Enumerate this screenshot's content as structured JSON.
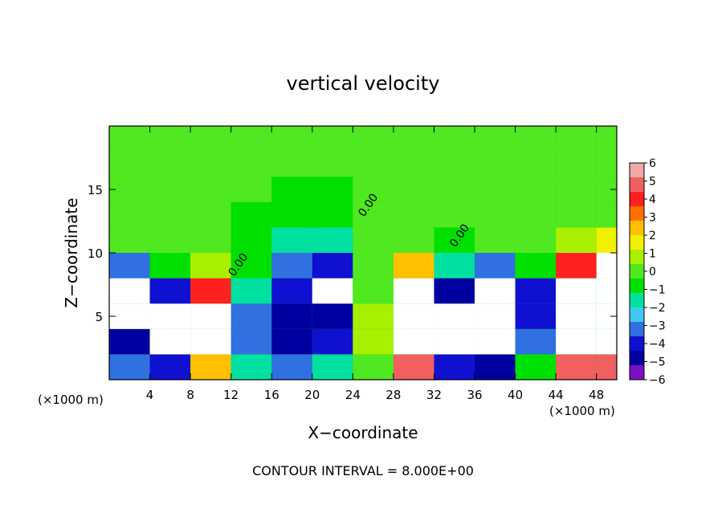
{
  "chart_data": {
    "type": "heatmap",
    "title": "vertical velocity",
    "xlabel": "X−coordinate",
    "ylabel": "Z−coordinate",
    "x_unit_left": "(×1000 m)",
    "x_unit_right": "(×1000 m)",
    "xlim": [
      0,
      50
    ],
    "ylim": [
      0,
      20
    ],
    "x_ticks": [
      4,
      8,
      12,
      16,
      20,
      24,
      28,
      32,
      36,
      40,
      44,
      48
    ],
    "y_ticks": [
      5,
      10,
      15
    ],
    "contour_labels": [
      {
        "text": "0.00",
        "x": 25.8,
        "y": 13.6
      },
      {
        "text": "0.00",
        "x": 34.8,
        "y": 11.2
      },
      {
        "text": "0.00",
        "x": 13.0,
        "y": 8.9
      }
    ],
    "footer": "CONTOUR INTERVAL = 8.000E+00",
    "colorbar": {
      "ticks": [
        "6",
        "5",
        "4",
        "3",
        "2",
        "1",
        "0",
        "−1",
        "−2",
        "−3",
        "−4",
        "−5",
        "−6"
      ],
      "colors": [
        "#f0a8a8",
        "#f06060",
        "#ff2020",
        "#ff7000",
        "#ffc000",
        "#f0f000",
        "#a8f000",
        "#50e820",
        "#00e000",
        "#00e0a0",
        "#40c8f0",
        "#3070e0",
        "#1010d0",
        "#0000a0",
        "#7a10c0"
      ]
    },
    "cells": [
      {
        "x": 0,
        "y": 0,
        "z": -3
      },
      {
        "x": 4,
        "y": 0,
        "z": -4
      },
      {
        "x": 8,
        "y": 0,
        "z": 3
      },
      {
        "x": 12,
        "y": 0,
        "z": -2
      },
      {
        "x": 16,
        "y": 0,
        "z": -3
      },
      {
        "x": 20,
        "y": 0,
        "z": -2
      },
      {
        "x": 24,
        "y": 0,
        "z": 0
      },
      {
        "x": 28,
        "y": 0,
        "z": 5
      },
      {
        "x": 32,
        "y": 0,
        "z": -4
      },
      {
        "x": 36,
        "y": 0,
        "z": -5
      },
      {
        "x": 40,
        "y": 0,
        "z": -1
      },
      {
        "x": 44,
        "y": 0,
        "z": 5
      },
      {
        "x": 48,
        "y": 0,
        "z": 5
      },
      {
        "x": 0,
        "y": 2,
        "z": -5
      },
      {
        "x": 4,
        "y": 2,
        "z": -6
      },
      {
        "x": 8,
        "y": 2,
        "z": 6
      },
      {
        "x": 12,
        "y": 2,
        "z": -3
      },
      {
        "x": 16,
        "y": 2,
        "z": -5
      },
      {
        "x": 20,
        "y": 2,
        "z": -4
      },
      {
        "x": 24,
        "y": 2,
        "z": 1
      },
      {
        "x": 28,
        "y": 2,
        "z": 6
      },
      {
        "x": 32,
        "y": 2,
        "z": -6
      },
      {
        "x": 36,
        "y": 2,
        "z": -6
      },
      {
        "x": 40,
        "y": 2,
        "z": -3
      },
      {
        "x": 44,
        "y": 2,
        "z": 6
      },
      {
        "x": 48,
        "y": 2,
        "z": 6
      },
      {
        "x": 0,
        "y": 4,
        "z": -6
      },
      {
        "x": 4,
        "y": 4,
        "z": -6
      },
      {
        "x": 8,
        "y": 4,
        "z": 6
      },
      {
        "x": 12,
        "y": 4,
        "z": -3
      },
      {
        "x": 16,
        "y": 4,
        "z": -5
      },
      {
        "x": 20,
        "y": 4,
        "z": -5
      },
      {
        "x": 24,
        "y": 4,
        "z": 1
      },
      {
        "x": 28,
        "y": 4,
        "z": 6
      },
      {
        "x": 32,
        "y": 4,
        "z": -6
      },
      {
        "x": 36,
        "y": 4,
        "z": -6
      },
      {
        "x": 40,
        "y": 4,
        "z": -4
      },
      {
        "x": 44,
        "y": 4,
        "z": 6
      },
      {
        "x": 48,
        "y": 4,
        "z": 6
      },
      {
        "x": 0,
        "y": 6,
        "z": -6
      },
      {
        "x": 4,
        "y": 6,
        "z": -4
      },
      {
        "x": 8,
        "y": 6,
        "z": 4
      },
      {
        "x": 12,
        "y": 6,
        "z": -2
      },
      {
        "x": 16,
        "y": 6,
        "z": -4
      },
      {
        "x": 20,
        "y": 6,
        "z": -6
      },
      {
        "x": 24,
        "y": 6,
        "z": 0
      },
      {
        "x": 28,
        "y": 6,
        "z": 6
      },
      {
        "x": 32,
        "y": 6,
        "z": -5
      },
      {
        "x": 36,
        "y": 6,
        "z": -6
      },
      {
        "x": 40,
        "y": 6,
        "z": -4
      },
      {
        "x": 44,
        "y": 6,
        "z": 6
      },
      {
        "x": 48,
        "y": 6,
        "z": 6
      },
      {
        "x": 0,
        "y": 8,
        "z": -3
      },
      {
        "x": 4,
        "y": 8,
        "z": -1
      },
      {
        "x": 8,
        "y": 8,
        "z": 1
      },
      {
        "x": 12,
        "y": 8,
        "z": -1
      },
      {
        "x": 16,
        "y": 8,
        "z": -3
      },
      {
        "x": 20,
        "y": 8,
        "z": -4
      },
      {
        "x": 24,
        "y": 8,
        "z": 0
      },
      {
        "x": 28,
        "y": 8,
        "z": 3
      },
      {
        "x": 32,
        "y": 8,
        "z": -2
      },
      {
        "x": 36,
        "y": 8,
        "z": -3
      },
      {
        "x": 40,
        "y": 8,
        "z": -1
      },
      {
        "x": 44,
        "y": 8,
        "z": 4
      },
      {
        "x": 48,
        "y": 8,
        "z": 6
      },
      {
        "x": 0,
        "y": 10,
        "z": 0
      },
      {
        "x": 4,
        "y": 10,
        "z": 0
      },
      {
        "x": 8,
        "y": 10,
        "z": 0
      },
      {
        "x": 12,
        "y": 10,
        "z": -1
      },
      {
        "x": 16,
        "y": 10,
        "z": -2
      },
      {
        "x": 20,
        "y": 10,
        "z": -2
      },
      {
        "x": 24,
        "y": 10,
        "z": 0
      },
      {
        "x": 28,
        "y": 10,
        "z": 0
      },
      {
        "x": 32,
        "y": 10,
        "z": -1
      },
      {
        "x": 36,
        "y": 10,
        "z": 0
      },
      {
        "x": 40,
        "y": 10,
        "z": 0
      },
      {
        "x": 44,
        "y": 10,
        "z": 1
      },
      {
        "x": 48,
        "y": 10,
        "z": 2
      },
      {
        "x": 0,
        "y": 12,
        "z": 0
      },
      {
        "x": 4,
        "y": 12,
        "z": 0
      },
      {
        "x": 8,
        "y": 12,
        "z": 0
      },
      {
        "x": 12,
        "y": 12,
        "z": -1
      },
      {
        "x": 16,
        "y": 12,
        "z": -1
      },
      {
        "x": 20,
        "y": 12,
        "z": -1
      },
      {
        "x": 24,
        "y": 12,
        "z": 0
      },
      {
        "x": 28,
        "y": 12,
        "z": 0
      },
      {
        "x": 32,
        "y": 12,
        "z": 0
      },
      {
        "x": 36,
        "y": 12,
        "z": 0
      },
      {
        "x": 40,
        "y": 12,
        "z": 0
      },
      {
        "x": 44,
        "y": 12,
        "z": 0
      },
      {
        "x": 48,
        "y": 12,
        "z": 0
      },
      {
        "x": 0,
        "y": 14,
        "z": 0
      },
      {
        "x": 4,
        "y": 14,
        "z": 0
      },
      {
        "x": 8,
        "y": 14,
        "z": 0
      },
      {
        "x": 12,
        "y": 14,
        "z": 0
      },
      {
        "x": 16,
        "y": 14,
        "z": -1
      },
      {
        "x": 20,
        "y": 14,
        "z": -1
      },
      {
        "x": 24,
        "y": 14,
        "z": 0
      },
      {
        "x": 28,
        "y": 14,
        "z": 0
      },
      {
        "x": 32,
        "y": 14,
        "z": 0
      },
      {
        "x": 36,
        "y": 14,
        "z": 0
      },
      {
        "x": 40,
        "y": 14,
        "z": 0
      },
      {
        "x": 44,
        "y": 14,
        "z": 0
      },
      {
        "x": 48,
        "y": 14,
        "z": 0
      },
      {
        "x": 0,
        "y": 16,
        "z": 0
      },
      {
        "x": 4,
        "y": 16,
        "z": 0
      },
      {
        "x": 8,
        "y": 16,
        "z": 0
      },
      {
        "x": 12,
        "y": 16,
        "z": 0
      },
      {
        "x": 16,
        "y": 16,
        "z": 0
      },
      {
        "x": 20,
        "y": 16,
        "z": 0
      },
      {
        "x": 24,
        "y": 16,
        "z": 0
      },
      {
        "x": 28,
        "y": 16,
        "z": 0
      },
      {
        "x": 32,
        "y": 16,
        "z": 0
      },
      {
        "x": 36,
        "y": 16,
        "z": 0
      },
      {
        "x": 40,
        "y": 16,
        "z": 0
      },
      {
        "x": 44,
        "y": 16,
        "z": 0
      },
      {
        "x": 48,
        "y": 16,
        "z": 0
      },
      {
        "x": 0,
        "y": 18,
        "z": 0
      },
      {
        "x": 4,
        "y": 18,
        "z": 0
      },
      {
        "x": 8,
        "y": 18,
        "z": 0
      },
      {
        "x": 12,
        "y": 18,
        "z": 0
      },
      {
        "x": 16,
        "y": 18,
        "z": 0
      },
      {
        "x": 20,
        "y": 18,
        "z": 0
      },
      {
        "x": 24,
        "y": 18,
        "z": 0
      },
      {
        "x": 28,
        "y": 18,
        "z": 0
      },
      {
        "x": 32,
        "y": 18,
        "z": 0
      },
      {
        "x": 36,
        "y": 18,
        "z": 0
      },
      {
        "x": 40,
        "y": 18,
        "z": 0
      },
      {
        "x": 44,
        "y": 18,
        "z": 0
      },
      {
        "x": 48,
        "y": 18,
        "z": 0
      }
    ]
  }
}
